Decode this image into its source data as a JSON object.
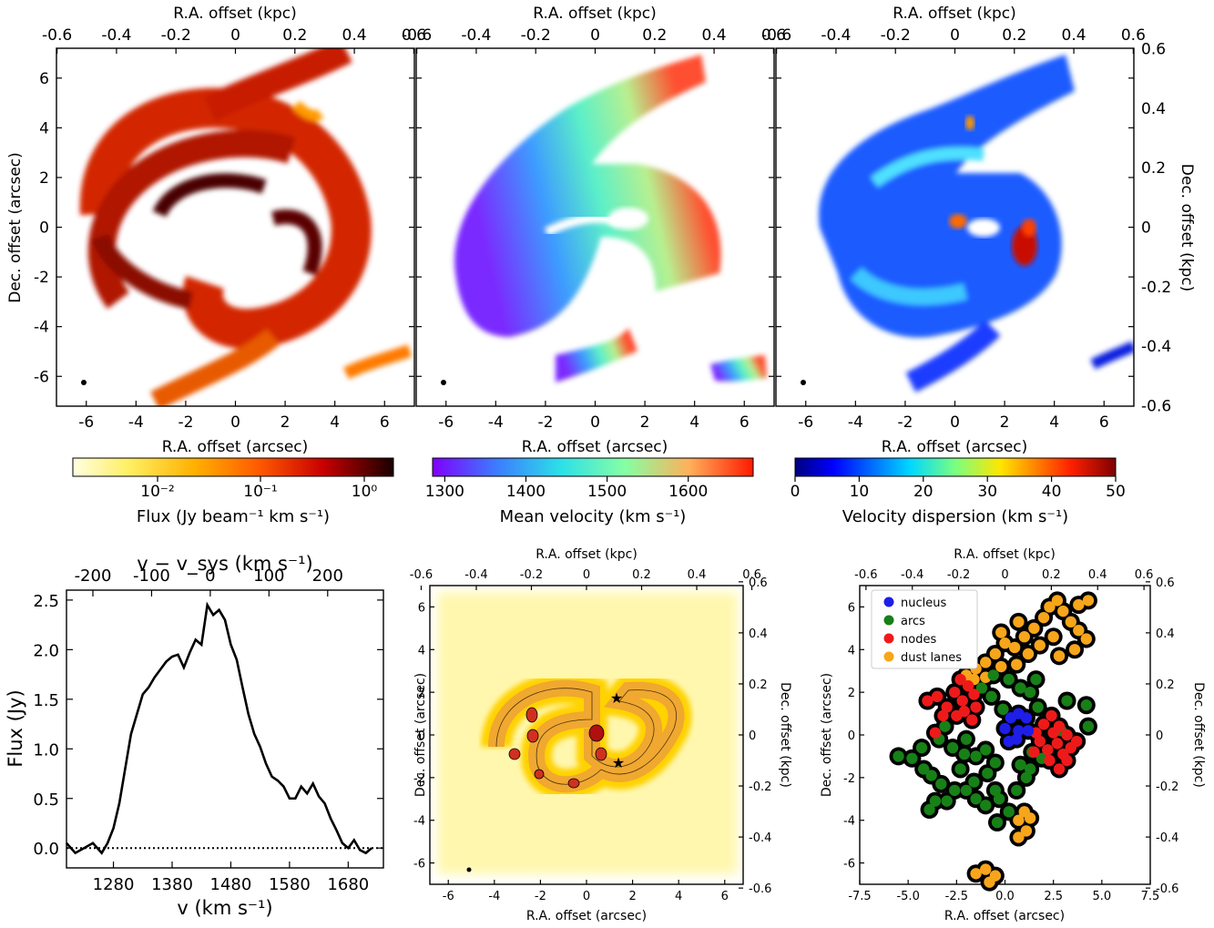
{
  "figure": {
    "maps": [
      {
        "panel": "flux",
        "xlabel": "R.A. offset (arcsec)",
        "ylabel": "Dec. offset (arcsec)",
        "toplabel": "R.A. offset (kpc)",
        "colorbar": {
          "label": "Flux (Jy beam⁻¹ km s⁻¹)",
          "ticks": [
            "10⁻²",
            "10⁻¹",
            "10⁰"
          ],
          "scale": "log"
        }
      },
      {
        "panel": "velocity",
        "xlabel": "R.A. offset (arcsec)",
        "toplabel": "R.A. offset (kpc)",
        "colorbar": {
          "label": "Mean velocity (km s⁻¹)",
          "ticks": [
            "1300",
            "1400",
            "1500",
            "1600"
          ],
          "range": [
            1285,
            1680
          ]
        }
      },
      {
        "panel": "dispersion",
        "xlabel": "R.A. offset (arcsec)",
        "toplabel": "R.A. offset (kpc)",
        "rightlabel": "Dec. offset (kpc)",
        "colorbar": {
          "label": "Velocity dispersion (km s⁻¹)",
          "ticks": [
            "0",
            "10",
            "20",
            "30",
            "40",
            "50"
          ],
          "range": [
            0,
            50
          ]
        }
      }
    ],
    "map_ticks": {
      "arcsec": [
        -6,
        -4,
        -2,
        0,
        2,
        4,
        6
      ],
      "kpc": [
        -0.6,
        -0.4,
        -0.2,
        0,
        0.2,
        0.4,
        0.6
      ]
    },
    "colors": {
      "flux_high": "#6b0000",
      "flux_mid": "#e03000",
      "flux_low": "#ffd800",
      "star": "#1428d8",
      "nucleus": "#1e1ee8",
      "arcs": "#178017",
      "nodes": "#ee1a1a",
      "dust_lanes": "#f7a51b"
    }
  },
  "chart_data": [
    {
      "type": "line",
      "title": "",
      "xlabel": "v (km s⁻¹)",
      "ylabel": "Flux (Jy)",
      "toplabel": "v − v_sys (km s⁻¹)",
      "xlim": [
        1200,
        1740
      ],
      "ylim": [
        -0.2,
        2.6
      ],
      "xticks": [
        1280,
        1380,
        1480,
        1580,
        1680
      ],
      "yticks": [
        0.0,
        0.5,
        1.0,
        1.5,
        2.0,
        2.5
      ],
      "top_ticks": [
        -200,
        -100,
        0,
        100,
        200
      ],
      "v_sys": 1445,
      "zero_line": "dotted",
      "series": [
        {
          "x": [
            1200,
            1215,
            1230,
            1245,
            1260,
            1270,
            1280,
            1290,
            1300,
            1310,
            1320,
            1330,
            1340,
            1350,
            1360,
            1370,
            1380,
            1390,
            1400,
            1410,
            1420,
            1430,
            1440,
            1450,
            1460,
            1470,
            1480,
            1490,
            1500,
            1510,
            1520,
            1530,
            1540,
            1550,
            1560,
            1570,
            1580,
            1590,
            1600,
            1610,
            1620,
            1630,
            1640,
            1650,
            1660,
            1670,
            1680,
            1690,
            1700,
            1710,
            1720
          ],
          "y": [
            0.05,
            -0.05,
            0.0,
            0.05,
            -0.05,
            0.05,
            0.2,
            0.45,
            0.8,
            1.15,
            1.35,
            1.55,
            1.62,
            1.72,
            1.8,
            1.88,
            1.93,
            1.95,
            1.82,
            1.97,
            2.1,
            2.05,
            2.45,
            2.35,
            2.4,
            2.3,
            2.05,
            1.9,
            1.62,
            1.35,
            1.15,
            1.02,
            0.85,
            0.72,
            0.68,
            0.62,
            0.5,
            0.5,
            0.62,
            0.55,
            0.65,
            0.52,
            0.45,
            0.3,
            0.18,
            0.05,
            0.0,
            0.08,
            -0.02,
            -0.05,
            0.0
          ]
        }
      ]
    },
    {
      "type": "scatter",
      "title": "",
      "xlabel": "R.A. offset (arcsec)",
      "ylabel": "Dec. offset (arcsec)",
      "toplabel": "R.A. offset (kpc)",
      "rightlabel": "Dec. offset (kpc)",
      "xlim": [
        -7.5,
        7.5
      ],
      "ylim": [
        -7,
        7
      ],
      "xticks": [
        -7.5,
        -5,
        -2.5,
        0,
        2.5,
        5,
        7.5
      ],
      "xtick_labels": [
        "-7.5",
        "-5.0",
        "-2.5",
        "0.0",
        "2.5",
        "5.0",
        "7.5"
      ],
      "yticks": [
        -6,
        -4,
        -2,
        0,
        2,
        4,
        6
      ],
      "kpc_ticks": [
        -0.6,
        -0.4,
        -0.2,
        0,
        0.2,
        0.4,
        0.6
      ],
      "legend": "top-left",
      "series": [
        {
          "name": "nucleus",
          "color": "#1e1ee8",
          "points": [
            [
              0,
              0.3
            ],
            [
              0.3,
              0.8
            ],
            [
              0.7,
              1.0
            ],
            [
              1.1,
              0.8
            ],
            [
              1.2,
              0.2
            ],
            [
              0.7,
              0.2
            ],
            [
              0.2,
              -0.3
            ],
            [
              0.6,
              -0.2
            ]
          ]
        },
        {
          "name": "arcs",
          "color": "#178017",
          "points": [
            [
              -5.5,
              -1.0
            ],
            [
              -4.8,
              -1.1
            ],
            [
              -4.3,
              -0.6
            ],
            [
              -4.2,
              -1.6
            ],
            [
              -3.8,
              -1.9
            ],
            [
              -3.3,
              -2.3
            ],
            [
              -3.6,
              -3.1
            ],
            [
              -3.9,
              -3.5
            ],
            [
              -3.0,
              -3.1
            ],
            [
              -2.6,
              -2.6
            ],
            [
              -2.0,
              -2.6
            ],
            [
              -1.6,
              -2.2
            ],
            [
              -1.5,
              -3.0
            ],
            [
              -1.0,
              -3.3
            ],
            [
              -0.5,
              -2.6
            ],
            [
              -0.3,
              -3.0
            ],
            [
              0.2,
              -3.6
            ],
            [
              -0.4,
              -4.1
            ],
            [
              0.6,
              -2.6
            ],
            [
              1.1,
              -2.0
            ],
            [
              0.8,
              -1.4
            ],
            [
              1.3,
              -1.6
            ],
            [
              -0.9,
              -1.8
            ],
            [
              -1.5,
              -1.0
            ],
            [
              -2.1,
              -0.9
            ],
            [
              -2.3,
              -1.6
            ],
            [
              -2.7,
              -0.6
            ],
            [
              -2.0,
              -0.2
            ],
            [
              -1.0,
              -0.7
            ],
            [
              -0.5,
              -1.3
            ],
            [
              -3.1,
              0.4
            ],
            [
              -3.4,
              -0.2
            ],
            [
              -0.1,
              1.2
            ],
            [
              -0.7,
              1.8
            ],
            [
              -1.2,
              2.2
            ],
            [
              0.8,
              2.2
            ],
            [
              1.3,
              2.0
            ],
            [
              1.7,
              1.3
            ],
            [
              -0.6,
              2.8
            ],
            [
              0.2,
              2.6
            ],
            [
              1.6,
              2.6
            ],
            [
              1.4,
              -0.8
            ],
            [
              1.9,
              -1.1
            ],
            [
              2.2,
              -0.7
            ],
            [
              3.2,
              1.6
            ],
            [
              4.2,
              1.4
            ],
            [
              4.3,
              0.4
            ],
            [
              2.9,
              0.2
            ]
          ]
        },
        {
          "name": "nodes",
          "color": "#ee1a1a",
          "points": [
            [
              -4.0,
              1.6
            ],
            [
              -3.5,
              1.8
            ],
            [
              -3.0,
              1.3
            ],
            [
              -2.6,
              2.0
            ],
            [
              -2.2,
              1.6
            ],
            [
              -1.9,
              2.3
            ],
            [
              -1.6,
              1.9
            ],
            [
              -2.1,
              1.1
            ],
            [
              -1.7,
              0.7
            ],
            [
              -2.5,
              0.9
            ],
            [
              -2.3,
              2.6
            ],
            [
              -1.5,
              1.3
            ],
            [
              -3.2,
              0.9
            ],
            [
              -3.6,
              0.1
            ],
            [
              1.6,
              0.1
            ],
            [
              2.0,
              0.5
            ],
            [
              2.4,
              0.9
            ],
            [
              2.8,
              0.4
            ],
            [
              3.2,
              0.0
            ],
            [
              3.4,
              -0.6
            ],
            [
              2.7,
              -0.4
            ],
            [
              2.2,
              -0.7
            ],
            [
              1.8,
              -0.3
            ],
            [
              2.3,
              -1.2
            ],
            [
              2.8,
              -1.6
            ],
            [
              3.2,
              -1.2
            ],
            [
              3.7,
              -0.3
            ],
            [
              2.5,
              0.1
            ],
            [
              3.0,
              -0.9
            ],
            [
              1.5,
              -0.8
            ]
          ]
        },
        {
          "name": "dust lanes",
          "color": "#f7a51b",
          "points": [
            [
              -2.0,
              2.8
            ],
            [
              -1.5,
              3.1
            ],
            [
              -1.0,
              3.4
            ],
            [
              -0.5,
              3.8
            ],
            [
              0.0,
              4.3
            ],
            [
              0.5,
              4.1
            ],
            [
              1.0,
              4.6
            ],
            [
              1.5,
              5.0
            ],
            [
              2.0,
              5.5
            ],
            [
              2.3,
              6.0
            ],
            [
              2.7,
              6.3
            ],
            [
              3.0,
              5.8
            ],
            [
              3.4,
              5.3
            ],
            [
              3.8,
              6.1
            ],
            [
              4.3,
              6.3
            ],
            [
              4.2,
              4.5
            ],
            [
              3.8,
              4.9
            ],
            [
              2.5,
              4.6
            ],
            [
              1.8,
              4.2
            ],
            [
              1.2,
              3.8
            ],
            [
              0.6,
              3.3
            ],
            [
              -0.2,
              3.2
            ],
            [
              -1.0,
              2.7
            ],
            [
              -1.6,
              2.6
            ],
            [
              -0.2,
              4.8
            ],
            [
              0.7,
              5.3
            ],
            [
              2.8,
              3.7
            ],
            [
              3.6,
              4.0
            ],
            [
              0.7,
              -4.0
            ],
            [
              1.0,
              -3.6
            ],
            [
              1.3,
              -3.9
            ],
            [
              1.1,
              -4.5
            ],
            [
              0.7,
              -4.8
            ],
            [
              -1.5,
              -6.5
            ],
            [
              -1.0,
              -6.3
            ],
            [
              -0.5,
              -6.6
            ],
            [
              -0.8,
              -6.9
            ]
          ]
        }
      ]
    }
  ]
}
